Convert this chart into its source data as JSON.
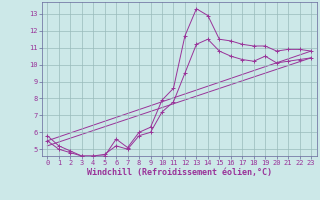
{
  "title": "",
  "xlabel": "Windchill (Refroidissement éolien,°C)",
  "ylabel": "",
  "background_color": "#cce8e8",
  "plot_bg_color": "#cce8e8",
  "grid_color": "#99bbbb",
  "line_color": "#993399",
  "spine_color": "#666699",
  "xlim": [
    -0.5,
    23.5
  ],
  "ylim": [
    4.6,
    13.7
  ],
  "xticks": [
    0,
    1,
    2,
    3,
    4,
    5,
    6,
    7,
    8,
    9,
    10,
    11,
    12,
    13,
    14,
    15,
    16,
    17,
    18,
    19,
    20,
    21,
    22,
    23
  ],
  "yticks": [
    5,
    6,
    7,
    8,
    9,
    10,
    11,
    12,
    13
  ],
  "line1_x": [
    0,
    1,
    2,
    3,
    4,
    5,
    6,
    7,
    8,
    9,
    10,
    11,
    12,
    13,
    14,
    15,
    16,
    17,
    18,
    19,
    20,
    21,
    22,
    23
  ],
  "line1_y": [
    5.8,
    5.2,
    4.9,
    4.6,
    4.6,
    4.6,
    5.6,
    5.1,
    6.0,
    6.3,
    7.9,
    8.6,
    11.7,
    13.3,
    12.9,
    11.5,
    11.4,
    11.2,
    11.1,
    11.1,
    10.8,
    10.9,
    10.9,
    10.8
  ],
  "line2_x": [
    0,
    1,
    2,
    3,
    4,
    5,
    6,
    7,
    8,
    9,
    10,
    11,
    12,
    13,
    14,
    15,
    16,
    17,
    18,
    19,
    20,
    21,
    22,
    23
  ],
  "line2_y": [
    5.5,
    5.0,
    4.8,
    4.6,
    4.6,
    4.7,
    5.2,
    5.0,
    5.8,
    6.0,
    7.2,
    7.8,
    9.5,
    11.2,
    11.5,
    10.8,
    10.5,
    10.3,
    10.2,
    10.5,
    10.1,
    10.2,
    10.3,
    10.4
  ],
  "line3_x": [
    0,
    23
  ],
  "line3_y": [
    5.5,
    10.8
  ],
  "line4_x": [
    0,
    23
  ],
  "line4_y": [
    5.2,
    10.4
  ],
  "tick_fontsize": 5,
  "xlabel_fontsize": 6,
  "marker_size": 2.5,
  "linewidth": 0.7
}
